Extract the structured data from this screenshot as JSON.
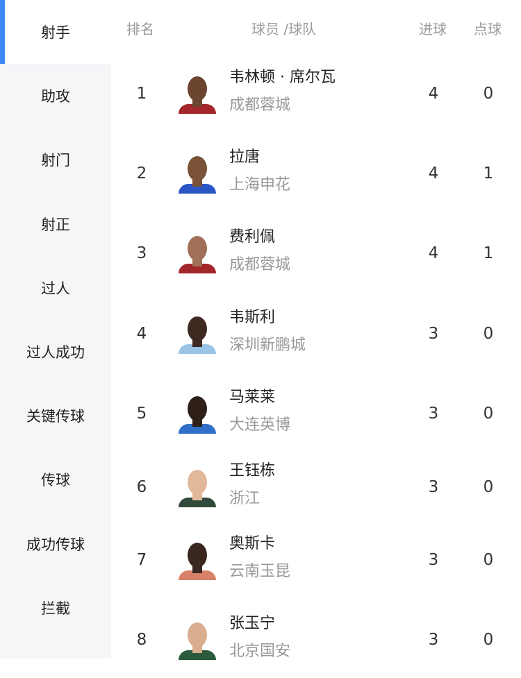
{
  "sidebar": {
    "items": [
      {
        "label": "射手",
        "active": true
      },
      {
        "label": "助攻"
      },
      {
        "label": "射门"
      },
      {
        "label": "射正"
      },
      {
        "label": "过人"
      },
      {
        "label": "过人成功"
      },
      {
        "label": "关键传球"
      },
      {
        "label": "传球"
      },
      {
        "label": "成功传球"
      },
      {
        "label": "拦截"
      }
    ],
    "accent_color": "#3d8af7"
  },
  "table": {
    "headers": {
      "rank": "排名",
      "player": "球员 /球队",
      "goals": "进球",
      "penalties": "点球"
    },
    "rows": [
      {
        "rank": "1",
        "name": "韦林顿 · 席尔瓦",
        "team": "成都蓉城",
        "goals": "4",
        "penalties": "0",
        "skin": "#6b4530",
        "shirt": "#a3262a"
      },
      {
        "rank": "2",
        "name": "拉唐",
        "team": "上海申花",
        "goals": "4",
        "penalties": "1",
        "skin": "#7a5238",
        "shirt": "#2a56c6"
      },
      {
        "rank": "3",
        "name": "费利佩",
        "team": "成都蓉城",
        "goals": "4",
        "penalties": "1",
        "skin": "#a07058",
        "shirt": "#a3262a"
      },
      {
        "rank": "4",
        "name": "韦斯利",
        "team": "深圳新鹏城",
        "goals": "3",
        "penalties": "0",
        "skin": "#3e2a20",
        "shirt": "#9ac3e6"
      },
      {
        "rank": "5",
        "name": "马莱莱",
        "team": "大连英博",
        "goals": "3",
        "penalties": "0",
        "skin": "#2e1f18",
        "shirt": "#2f6fc9"
      },
      {
        "rank": "6",
        "name": "王钰栋",
        "team": "浙江",
        "goals": "3",
        "penalties": "0",
        "skin": "#e1b899",
        "shirt": "#2f4a3a"
      },
      {
        "rank": "7",
        "name": "奥斯卡",
        "team": "云南玉昆",
        "goals": "3",
        "penalties": "0",
        "skin": "#3a2820",
        "shirt": "#d9826a"
      },
      {
        "rank": "8",
        "name": "张玉宁",
        "team": "北京国安",
        "goals": "3",
        "penalties": "0",
        "skin": "#d8ae8e",
        "shirt": "#2c5a3c"
      }
    ]
  }
}
